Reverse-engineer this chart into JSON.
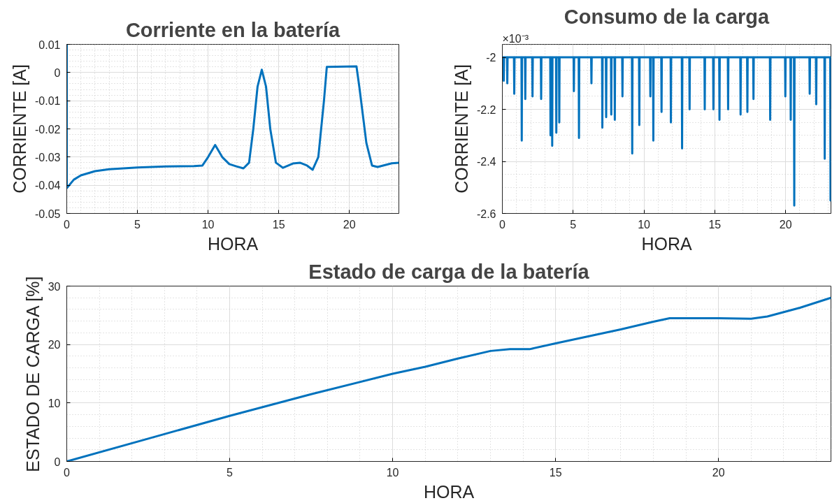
{
  "chart_data": [
    {
      "type": "line",
      "title": "Corriente en la batería",
      "xlabel": "HORA",
      "ylabel": "CORRIENTE [A]",
      "x": [
        0,
        0,
        0.5,
        1,
        2,
        3,
        5,
        7,
        9,
        9.6,
        10,
        10.5,
        11,
        11.5,
        12,
        12.5,
        12.9,
        13.2,
        13.5,
        13.8,
        14.1,
        14.4,
        14.8,
        15.3,
        16,
        16.5,
        17,
        17.4,
        17.8,
        18.2,
        18.4,
        20.5,
        20.7,
        21.2,
        21.6,
        22,
        23,
        23.5
      ],
      "series": [
        {
          "color": "#0072bd",
          "values": [
            0.01,
            -0.041,
            -0.038,
            -0.0365,
            -0.035,
            -0.0343,
            -0.0337,
            -0.0333,
            -0.0332,
            -0.033,
            -0.03,
            -0.0257,
            -0.03,
            -0.0325,
            -0.0333,
            -0.034,
            -0.032,
            -0.02,
            -0.005,
            0.001,
            -0.005,
            -0.02,
            -0.032,
            -0.0338,
            -0.0323,
            -0.032,
            -0.033,
            -0.0345,
            -0.03,
            -0.01,
            0.002,
            0.0022,
            -0.005,
            -0.025,
            -0.033,
            -0.0335,
            -0.0322,
            -0.032
          ]
        }
      ],
      "xlim": [
        0,
        23.5
      ],
      "ylim": [
        -0.05,
        0.01
      ],
      "xticks": [
        0,
        5,
        10,
        15,
        20
      ],
      "yticks": [
        -0.05,
        -0.04,
        -0.03,
        -0.02,
        -0.01,
        0,
        0.01
      ],
      "grid": true
    },
    {
      "type": "line",
      "title": "Consumo de la carga",
      "xlabel": "HORA",
      "ylabel": "CORRIENTE [A]",
      "annotations": [
        "×10⁻³"
      ],
      "x": [
        0,
        0.08,
        0.1,
        0.12,
        0.33,
        0.35,
        0.37,
        0.82,
        0.84,
        0.86,
        1.35,
        1.37,
        1.39,
        1.6,
        1.62,
        1.64,
        2.11,
        2.13,
        2.15,
        2.72,
        2.74,
        2.76,
        3.38,
        3.4,
        3.42,
        3.5,
        3.52,
        3.54,
        3.79,
        3.81,
        3.83,
        4.0,
        4.02,
        4.04,
        5.03,
        5.05,
        5.07,
        5.39,
        5.41,
        5.43,
        6.27,
        6.29,
        6.31,
        7.04,
        7.06,
        7.08,
        7.31,
        7.33,
        7.35,
        7.67,
        7.69,
        7.71,
        7.92,
        7.94,
        7.96,
        8.46,
        8.48,
        8.5,
        9.15,
        9.17,
        9.19,
        9.65,
        9.67,
        9.69,
        10.43,
        10.45,
        10.47,
        10.64,
        10.66,
        10.68,
        11.22,
        11.24,
        11.26,
        11.88,
        11.9,
        11.92,
        12.67,
        12.69,
        12.71,
        13.2,
        13.22,
        13.24,
        14.27,
        14.29,
        14.31,
        14.88,
        14.9,
        14.92,
        15.31,
        15.33,
        15.35,
        15.92,
        15.94,
        15.96,
        16.8,
        16.82,
        16.84,
        17.28,
        17.3,
        17.32,
        17.71,
        17.73,
        17.75,
        18.89,
        18.91,
        18.93,
        19.96,
        19.98,
        20.0,
        20.34,
        20.36,
        20.38,
        20.59,
        20.61,
        20.63,
        21.68,
        21.7,
        21.72,
        22.14,
        22.16,
        22.18,
        22.74,
        22.76,
        22.78,
        23.15,
        23.17,
        23.19,
        23.2
      ],
      "series": [
        {
          "color": "#0072bd",
          "values": [
            -2,
            -2,
            -2.09,
            -2,
            -2,
            -2.1,
            -2,
            -2,
            -2.14,
            -2,
            -2,
            -2.32,
            -2,
            -2,
            -2.16,
            -2,
            -2,
            -2.15,
            -2,
            -2,
            -2.16,
            -2,
            -2,
            -2.3,
            -2,
            -2,
            -2.34,
            -2,
            -2,
            -2.29,
            -2,
            -2,
            -2.25,
            -2,
            -2,
            -2.13,
            -2,
            -2,
            -2.31,
            -2,
            -2,
            -2.1,
            -2,
            -2,
            -2.27,
            -2,
            -2,
            -2.23,
            -2,
            -2,
            -2.22,
            -2,
            -2,
            -2.24,
            -2,
            -2,
            -2.15,
            -2,
            -2,
            -2.37,
            -2,
            -2,
            -2.26,
            -2,
            -2,
            -2.15,
            -2,
            -2,
            -2.32,
            -2,
            -2,
            -2.21,
            -2,
            -2,
            -2.25,
            -2,
            -2,
            -2.35,
            -2,
            -2,
            -2.2,
            -2,
            -2,
            -2.2,
            -2,
            -2,
            -2.2,
            -2,
            -2,
            -2.24,
            -2,
            -2,
            -2.2,
            -2,
            -2,
            -2.22,
            -2,
            -2,
            -2.21,
            -2,
            -2,
            -2.16,
            -2,
            -2,
            -2.24,
            -2,
            -2,
            -2.15,
            -2,
            -2,
            -2.24,
            -2,
            -2,
            -2.57,
            -2,
            -2,
            -2.14,
            -2,
            -2,
            -2.18,
            -2,
            -2,
            -2.39,
            -2,
            -2,
            -2.55,
            -2,
            -2
          ]
        }
      ],
      "xlim": [
        0,
        23.2
      ],
      "ylim": [
        -2.6,
        -1.95
      ],
      "xticks": [
        0,
        5,
        10,
        15,
        20
      ],
      "yticks": [
        -2.6,
        -2.4,
        -2.2,
        -2
      ],
      "grid": true
    },
    {
      "type": "line",
      "title": "Estado de carga de la batería",
      "xlabel": "HORA",
      "ylabel": "ESTADO DE CARGA [%]",
      "x": [
        0,
        2.5,
        5,
        7.5,
        10,
        11,
        12,
        13,
        13.6,
        14.2,
        15,
        16,
        17,
        18,
        18.5,
        20,
        21,
        21.5,
        22.5,
        23.45
      ],
      "series": [
        {
          "color": "#0072bd",
          "values": [
            0,
            3.9,
            7.8,
            11.5,
            15,
            16.2,
            17.6,
            18.9,
            19.2,
            19.2,
            20.2,
            21.4,
            22.6,
            23.9,
            24.5,
            24.5,
            24.4,
            24.8,
            26.3,
            28
          ]
        }
      ],
      "xlim": [
        0,
        23.45
      ],
      "ylim": [
        0,
        30
      ],
      "xticks": [
        0,
        5,
        10,
        15,
        20
      ],
      "yticks": [
        0,
        10,
        20,
        30
      ],
      "grid": true
    }
  ]
}
